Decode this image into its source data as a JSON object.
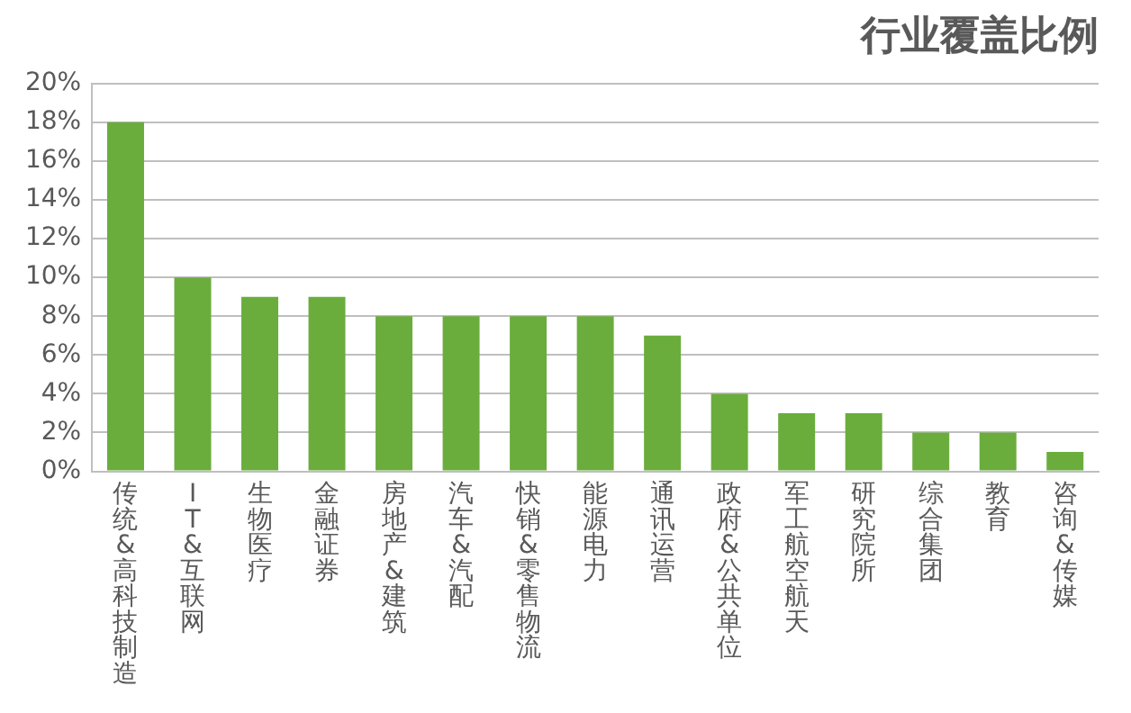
{
  "chart_data": {
    "type": "bar",
    "title": "行业覆盖比例",
    "categories": [
      "传统&高科技制造",
      "IT&互联网",
      "生物医疗",
      "金融证券",
      "房地产&建筑",
      "汽车&汽配",
      "快销&零售物流",
      "能源电力",
      "通讯运营",
      "政府&公共单位",
      "军工航空航天",
      "研究院所",
      "综合集团",
      "教育",
      "咨询&传媒"
    ],
    "values": [
      18,
      10,
      9,
      9,
      8,
      8,
      8,
      8,
      7,
      4,
      3,
      3,
      2,
      2,
      1
    ],
    "color": "#6aad3d",
    "ylim": [
      0,
      20
    ],
    "yticks": [
      {
        "value": 0,
        "label": "0%"
      },
      {
        "value": 2,
        "label": "2%"
      },
      {
        "value": 4,
        "label": "4%"
      },
      {
        "value": 6,
        "label": "6%"
      },
      {
        "value": 8,
        "label": "8%"
      },
      {
        "value": 10,
        "label": "10%"
      },
      {
        "value": 12,
        "label": "12%"
      },
      {
        "value": 14,
        "label": "14%"
      },
      {
        "value": 16,
        "label": "16%"
      },
      {
        "value": 18,
        "label": "18%"
      },
      {
        "value": 20,
        "label": "20%"
      }
    ],
    "grid": "y",
    "legend": false
  }
}
